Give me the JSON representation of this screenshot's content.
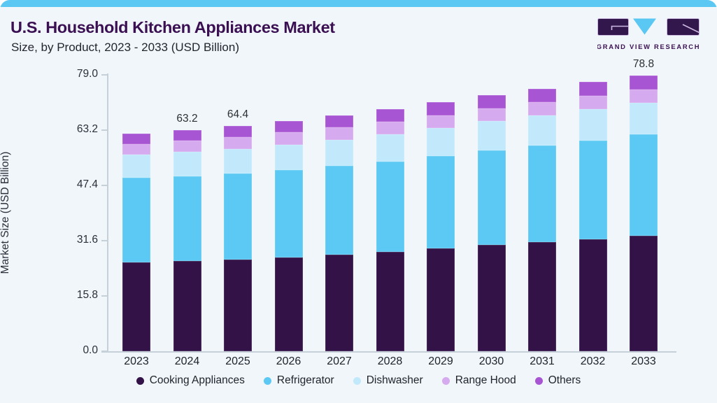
{
  "page": {
    "background": "#f0f6fa",
    "accent_bar_color": "#5ac8f2"
  },
  "header": {
    "title": "U.S. Household Kitchen Appliances Market",
    "subtitle": "Size, by Product, 2023 - 2033 (USD Billion)",
    "title_color": "#3b1053"
  },
  "logo": {
    "text": "GRAND VIEW RESEARCH",
    "dark_color": "#32174d",
    "blue_color": "#5ac8f2"
  },
  "chart_data": {
    "type": "bar",
    "stacked": true,
    "title": "U.S. Household Kitchen Appliances Market Size, by Product, 2023 - 2033 (USD Billion)",
    "categories": [
      "2023",
      "2024",
      "2025",
      "2026",
      "2027",
      "2028",
      "2029",
      "2030",
      "2031",
      "2032",
      "2033"
    ],
    "series": [
      {
        "name": "Cooking Appliances",
        "color": "#321247",
        "values": [
          25.4,
          25.8,
          26.2,
          26.9,
          27.7,
          28.5,
          29.4,
          30.4,
          31.3,
          32.0,
          33.0
        ]
      },
      {
        "name": "Refrigerator",
        "color": "#5bc9f3",
        "values": [
          24.2,
          24.3,
          24.6,
          24.9,
          25.3,
          25.8,
          26.4,
          27.0,
          27.6,
          28.3,
          29.0
        ]
      },
      {
        "name": "Dishwasher",
        "color": "#c1e9fb",
        "values": [
          6.7,
          6.9,
          7.1,
          7.3,
          7.5,
          7.8,
          8.1,
          8.4,
          8.6,
          8.9,
          9.1
        ]
      },
      {
        "name": "Range Hood",
        "color": "#d6aaee",
        "values": [
          3.0,
          3.2,
          3.4,
          3.5,
          3.6,
          3.6,
          3.6,
          3.7,
          3.7,
          3.8,
          3.7
        ]
      },
      {
        "name": "Others",
        "color": "#a855d4",
        "values": [
          2.9,
          3.0,
          3.1,
          3.2,
          3.4,
          3.6,
          3.7,
          3.8,
          3.9,
          4.0,
          4.0
        ]
      }
    ],
    "totals_shown": {
      "2024": "63.2",
      "2025": "64.4",
      "2033": "78.8"
    },
    "xlabel": "",
    "ylabel": "Market Size (USD Billion)",
    "yticks": [
      "79.0",
      "63.2",
      "47.4",
      "31.6",
      "15.8",
      "0.0"
    ],
    "ylim": [
      0,
      79.0
    ],
    "grid": false,
    "legend_position": "bottom",
    "legend": [
      "Cooking Appliances",
      "Refrigerator",
      "Dishwasher",
      "Range Hood",
      "Others"
    ]
  }
}
